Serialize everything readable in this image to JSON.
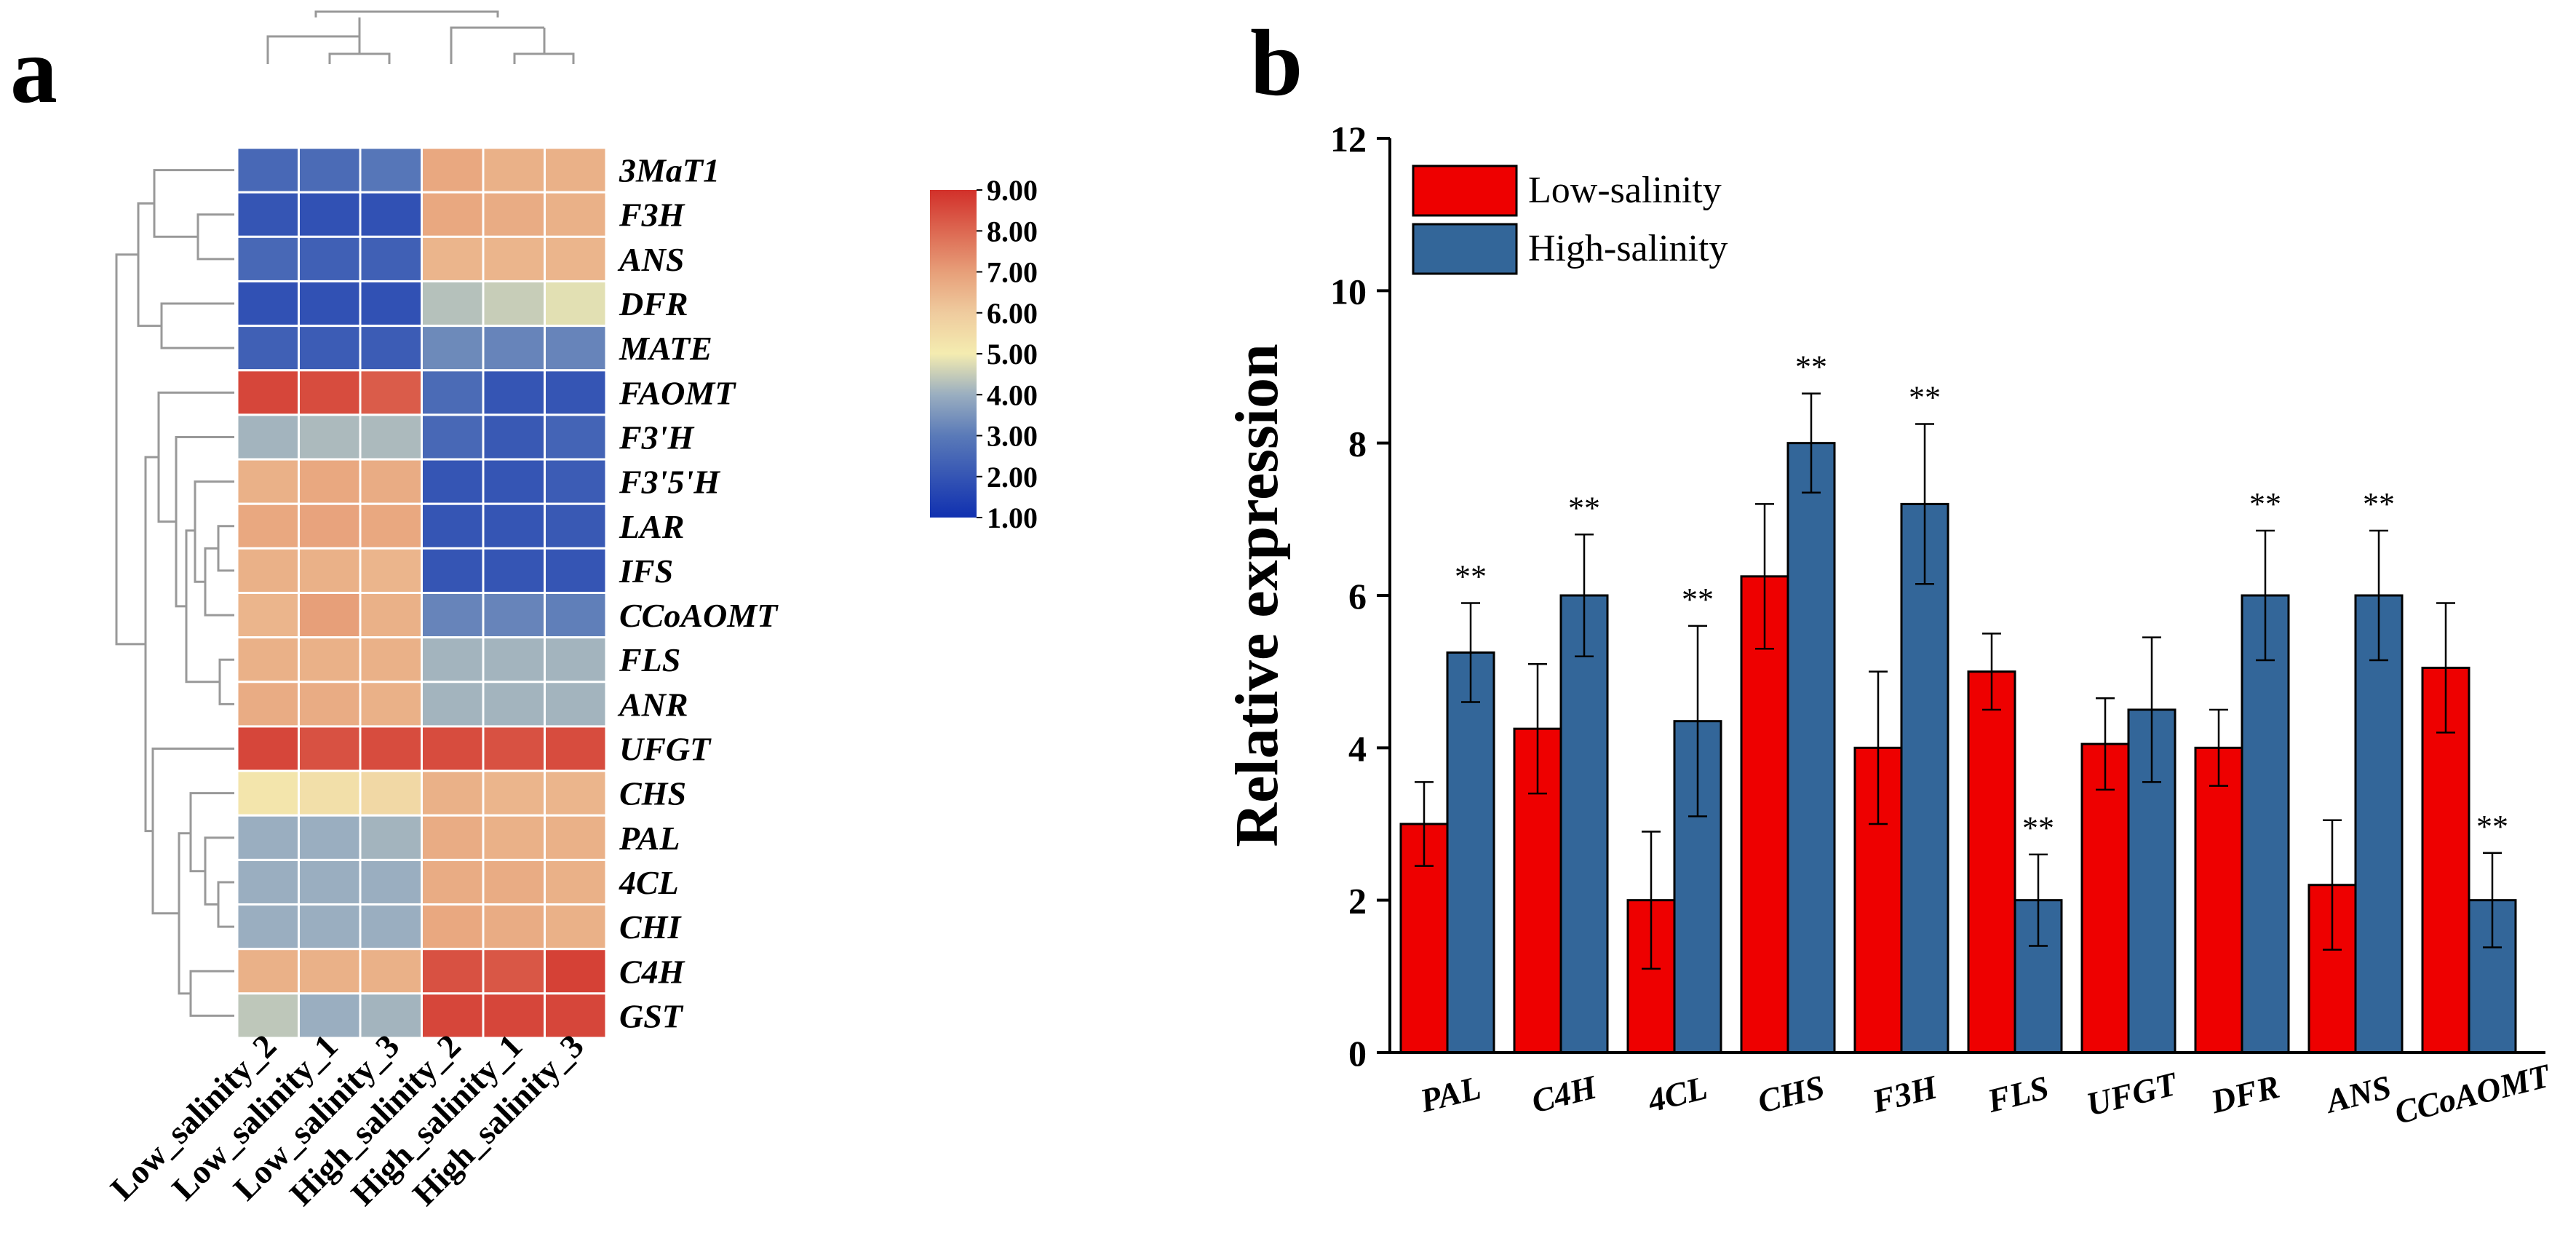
{
  "panel_a_label": "a",
  "panel_b_label": "b",
  "chart_data": [
    {
      "type": "heatmap",
      "samples": [
        "Low_salinity_2",
        "Low_salinity_1",
        "Low_salinity_3",
        "High_salinity_2",
        "High_salinity_1",
        "High_salinity_3"
      ],
      "genes": [
        "3MaT1",
        "F3H",
        "ANS",
        "DFR",
        "MATE",
        "FAOMT",
        "F3'H",
        "F3'5'H",
        "LAR",
        "IFS",
        "CCoAOMT",
        "FLS",
        "ANR",
        "UFGT",
        "CHS",
        "PAL",
        "4CL",
        "CHI",
        "C4H",
        "GST"
      ],
      "values": [
        [
          2.5,
          2.6,
          2.9,
          6.8,
          6.6,
          6.6
        ],
        [
          2.0,
          1.9,
          1.9,
          6.8,
          6.7,
          6.6
        ],
        [
          2.5,
          2.3,
          2.3,
          6.5,
          6.5,
          6.5
        ],
        [
          1.9,
          1.9,
          1.9,
          4.3,
          4.5,
          4.8
        ],
        [
          2.3,
          2.2,
          2.2,
          3.3,
          3.2,
          3.2
        ],
        [
          8.6,
          8.5,
          8.2,
          2.6,
          2.0,
          2.0
        ],
        [
          4.1,
          4.2,
          4.2,
          2.5,
          2.1,
          2.4
        ],
        [
          6.6,
          6.8,
          6.7,
          2.0,
          2.0,
          2.2
        ],
        [
          6.8,
          6.9,
          6.8,
          2.0,
          2.0,
          2.1
        ],
        [
          6.6,
          6.6,
          6.5,
          2.0,
          2.0,
          2.0
        ],
        [
          6.5,
          7.0,
          6.6,
          3.2,
          3.2,
          3.1
        ],
        [
          6.6,
          6.6,
          6.6,
          4.1,
          4.1,
          4.1
        ],
        [
          6.7,
          6.7,
          6.6,
          4.1,
          4.1,
          4.1
        ],
        [
          8.6,
          8.4,
          8.5,
          8.5,
          8.4,
          8.5
        ],
        [
          5.2,
          5.4,
          5.6,
          6.6,
          6.5,
          6.5
        ],
        [
          4.0,
          4.0,
          4.1,
          6.7,
          6.6,
          6.6
        ],
        [
          4.0,
          4.0,
          4.0,
          6.7,
          6.7,
          6.6
        ],
        [
          4.0,
          4.0,
          4.0,
          6.8,
          6.7,
          6.6
        ],
        [
          6.6,
          6.6,
          6.6,
          8.4,
          8.3,
          8.7
        ],
        [
          4.4,
          4.0,
          4.1,
          8.6,
          8.6,
          8.6
        ]
      ],
      "colorbar": {
        "min": 1.0,
        "max": 9.0,
        "ticks": [
          "9.00",
          "8.00",
          "7.00",
          "6.00",
          "5.00",
          "4.00",
          "3.00",
          "2.00",
          "1.00"
        ],
        "colors": [
          "#1e3fb3",
          "#4a6fb8",
          "#8fa6bd",
          "#f3ecb2",
          "#efc9a0",
          "#e6a37c",
          "#d93a30"
        ]
      }
    },
    {
      "type": "bar",
      "categories": [
        "PAL",
        "C4H",
        "4CL",
        "CHS",
        "F3H",
        "FLS",
        "UFGT",
        "DFR",
        "ANS",
        "CCoAOMT"
      ],
      "series": [
        {
          "name": "Low-salinity",
          "color": "#ee0000",
          "values": [
            3.0,
            4.25,
            2.0,
            6.25,
            4.0,
            5.0,
            4.05,
            4.0,
            2.2,
            5.05
          ],
          "errors": [
            0.55,
            0.85,
            0.9,
            0.95,
            1.0,
            0.5,
            0.6,
            0.5,
            0.85,
            0.85
          ]
        },
        {
          "name": "High-salinity",
          "color": "#336699",
          "values": [
            5.25,
            6.0,
            4.35,
            8.0,
            7.2,
            2.0,
            4.5,
            6.0,
            6.0,
            2.0
          ],
          "errors": [
            0.65,
            0.8,
            1.25,
            0.65,
            1.05,
            0.6,
            0.95,
            0.85,
            0.85,
            0.62
          ]
        }
      ],
      "significance": [
        "**",
        "**",
        "**",
        "**",
        "**",
        "**",
        "",
        "**",
        "**",
        "**"
      ],
      "ylabel": "Relative expression",
      "xlabel": "",
      "ylim": [
        0,
        12
      ],
      "yticks": [
        0,
        2,
        4,
        6,
        8,
        10,
        12
      ],
      "legend_position": "top-left"
    }
  ]
}
